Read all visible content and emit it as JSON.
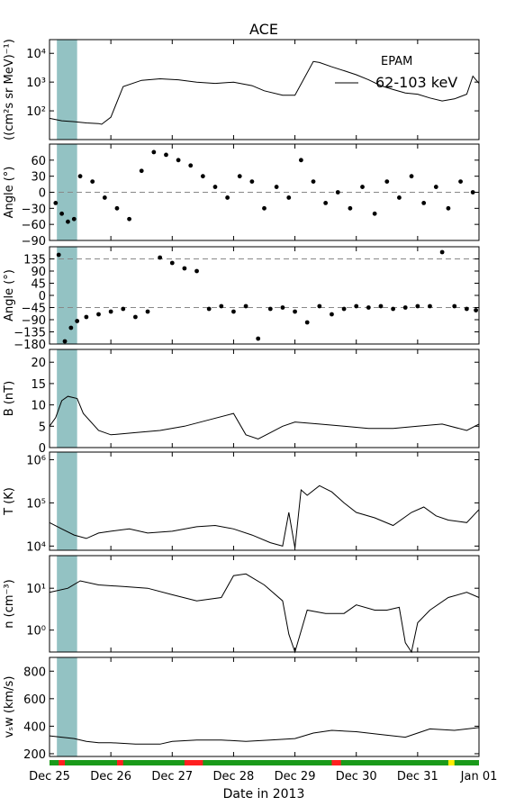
{
  "chart_data": {
    "type": "line",
    "title": "ACE",
    "xlabel": "Date in 2013",
    "x_ticks": [
      "Dec 25",
      "Dec 26",
      "Dec 27",
      "Dec 28",
      "Dec 29",
      "Dec 30",
      "Dec 31",
      "Jan 01"
    ],
    "xlim_days": [
      0,
      7
    ],
    "highlight_days": [
      0.12,
      0.45
    ],
    "highlight_color": "#93c2c3",
    "panels": [
      {
        "id": "epam",
        "type": "line",
        "ylabel": "((cm²s sr MeV)⁻¹)",
        "yscale": "log",
        "ylim": [
          10,
          30000
        ],
        "ytick_labels": [
          "10²",
          "10³",
          "10⁴"
        ],
        "ytick_values": [
          100,
          1000,
          10000
        ],
        "legend_title": "EPAM",
        "legend_entry": "62-103 keV",
        "series": [
          {
            "x": [
              0,
              0.2,
              0.4,
              0.6,
              0.8,
              0.85,
              1.0,
              1.2,
              1.5,
              1.8,
              2.1,
              2.4,
              2.7,
              3.0,
              3.3,
              3.5,
              3.8,
              4.0,
              4.3,
              4.4,
              4.6,
              4.8,
              5.0,
              5.2,
              5.4,
              5.6,
              5.8,
              6.0,
              6.2,
              6.4,
              6.6,
              6.8,
              6.9,
              7.0
            ],
            "y": [
              55,
              45,
              42,
              38,
              36,
              34,
              60,
              700,
              1150,
              1300,
              1200,
              1000,
              900,
              1000,
              750,
              500,
              350,
              350,
              5200,
              4800,
              3400,
              2500,
              1800,
              1200,
              750,
              550,
              420,
              380,
              280,
              220,
              260,
              380,
              1600,
              900
            ]
          }
        ]
      },
      {
        "id": "theta",
        "type": "scatter",
        "ylabel": "Angle (°)",
        "ylim": [
          -90,
          90
        ],
        "ytick_labels": [
          "−90",
          "−60",
          "−30",
          "0",
          "30",
          "60"
        ],
        "ytick_values": [
          -90,
          -60,
          -30,
          0,
          30,
          60
        ],
        "ref_lines": [
          0
        ],
        "series": [
          {
            "x": [
              0.1,
              0.2,
              0.3,
              0.4,
              0.5,
              0.7,
              0.9,
              1.1,
              1.3,
              1.5,
              1.7,
              1.9,
              2.1,
              2.3,
              2.5,
              2.7,
              2.9,
              3.1,
              3.3,
              3.5,
              3.7,
              3.9,
              4.1,
              4.3,
              4.5,
              4.7,
              4.9,
              5.1,
              5.3,
              5.5,
              5.7,
              5.9,
              6.1,
              6.3,
              6.5,
              6.7,
              6.9
            ],
            "y": [
              -20,
              -40,
              -55,
              -50,
              30,
              20,
              -10,
              -30,
              -50,
              40,
              75,
              70,
              60,
              50,
              30,
              10,
              -10,
              30,
              20,
              -30,
              10,
              -10,
              60,
              20,
              -20,
              0,
              -30,
              10,
              -40,
              20,
              -10,
              30,
              -20,
              10,
              -30,
              20,
              0
            ]
          }
        ]
      },
      {
        "id": "phi",
        "type": "scatter",
        "ylabel": "Angle (°)",
        "ylim": [
          -180,
          180
        ],
        "ytick_labels": [
          "−180",
          "−135",
          "−90",
          "−45",
          "0",
          "45",
          "90",
          "135"
        ],
        "ytick_values": [
          -180,
          -135,
          -90,
          -45,
          0,
          45,
          90,
          135
        ],
        "ref_lines": [
          135,
          -45
        ],
        "series": [
          {
            "x": [
              0.15,
              0.25,
              0.35,
              0.45,
              0.6,
              0.8,
              1.0,
              1.2,
              1.4,
              1.6,
              1.8,
              2.0,
              2.2,
              2.4,
              2.6,
              2.8,
              3.0,
              3.2,
              3.4,
              3.6,
              3.8,
              4.0,
              4.2,
              4.4,
              4.6,
              4.8,
              5.0,
              5.2,
              5.4,
              5.6,
              5.8,
              6.0,
              6.2,
              6.4,
              6.6,
              6.8,
              6.95
            ],
            "y": [
              150,
              -170,
              -120,
              -95,
              -80,
              -70,
              -60,
              -50,
              -80,
              -60,
              140,
              120,
              100,
              90,
              -50,
              -40,
              -60,
              -40,
              -160,
              -50,
              -45,
              -60,
              -100,
              -40,
              -70,
              -50,
              -40,
              -45,
              -40,
              -50,
              -45,
              -40,
              -40,
              160,
              -40,
              -50,
              -55
            ]
          }
        ]
      },
      {
        "id": "b",
        "type": "line",
        "ylabel": "B (nT)",
        "ylim": [
          0,
          23
        ],
        "ytick_labels": [
          "0",
          "5",
          "10",
          "15",
          "20"
        ],
        "ytick_values": [
          0,
          5,
          10,
          15,
          20
        ],
        "series": [
          {
            "x": [
              0,
              0.1,
              0.2,
              0.3,
              0.45,
              0.55,
              0.8,
              1.0,
              1.4,
              1.8,
              2.2,
              2.6,
              3.0,
              3.2,
              3.4,
              3.6,
              3.8,
              4.0,
              4.4,
              4.8,
              5.2,
              5.6,
              6.0,
              6.4,
              6.8,
              7.0
            ],
            "y": [
              5,
              7,
              11,
              12,
              11.5,
              8,
              4,
              3,
              3.5,
              4,
              5,
              6.5,
              8,
              3,
              2,
              3.5,
              5,
              6,
              5.5,
              5,
              4.5,
              4.5,
              5,
              5.5,
              4,
              5.5
            ]
          }
        ]
      },
      {
        "id": "t",
        "type": "line",
        "ylabel": "T (K)",
        "yscale": "log",
        "ylim": [
          8000,
          1500000
        ],
        "ytick_labels": [
          "10⁴",
          "10⁵",
          "10⁶"
        ],
        "ytick_values": [
          10000,
          100000,
          1000000
        ],
        "series": [
          {
            "x": [
              0,
              0.2,
              0.4,
              0.6,
              0.8,
              1.0,
              1.3,
              1.6,
              2.0,
              2.4,
              2.7,
              3.0,
              3.3,
              3.6,
              3.8,
              3.9,
              4.0,
              4.1,
              4.2,
              4.4,
              4.6,
              4.8,
              5.0,
              5.3,
              5.6,
              5.9,
              6.1,
              6.3,
              6.5,
              6.8,
              7.0
            ],
            "y": [
              35000,
              25000,
              18000,
              15000,
              20000,
              22000,
              25000,
              20000,
              22000,
              28000,
              30000,
              25000,
              18000,
              12000,
              10000,
              60000,
              9000,
              200000,
              150000,
              250000,
              180000,
              100000,
              60000,
              45000,
              30000,
              60000,
              80000,
              50000,
              40000,
              35000,
              70000
            ]
          }
        ]
      },
      {
        "id": "n",
        "type": "line",
        "ylabel": "n (cm⁻³)",
        "yscale": "log",
        "ylim": [
          0.3,
          60
        ],
        "ytick_labels": [
          "10⁰",
          "10¹"
        ],
        "ytick_values": [
          1,
          10
        ],
        "series": [
          {
            "x": [
              0,
              0.3,
              0.5,
              0.8,
              1.2,
              1.6,
              2.0,
              2.4,
              2.8,
              3.0,
              3.2,
              3.5,
              3.8,
              3.9,
              4.0,
              4.2,
              4.5,
              4.8,
              5.0,
              5.3,
              5.5,
              5.7,
              5.8,
              5.9,
              6.0,
              6.2,
              6.5,
              6.8,
              7.0
            ],
            "y": [
              8,
              10,
              15,
              12,
              11,
              10,
              7,
              5,
              6,
              20,
              22,
              12,
              5,
              0.8,
              0.3,
              3,
              2.5,
              2.5,
              4,
              3,
              3,
              3.5,
              0.5,
              0.3,
              1.5,
              3,
              6,
              8,
              6
            ]
          }
        ]
      },
      {
        "id": "v",
        "type": "line",
        "ylabel": "vₛw (km/s)",
        "ylim": [
          180,
          900
        ],
        "ytick_labels": [
          "200",
          "400",
          "600",
          "800"
        ],
        "ytick_values": [
          200,
          400,
          600,
          800
        ],
        "series": [
          {
            "x": [
              0,
              0.2,
              0.4,
              0.6,
              0.8,
              1.0,
              1.4,
              1.8,
              2.0,
              2.4,
              2.8,
              3.2,
              3.6,
              4.0,
              4.3,
              4.6,
              5.0,
              5.4,
              5.8,
              6.0,
              6.2,
              6.6,
              7.0
            ],
            "y": [
              330,
              320,
              310,
              290,
              280,
              280,
              270,
              270,
              290,
              300,
              300,
              290,
              300,
              310,
              350,
              370,
              360,
              340,
              320,
              350,
              380,
              370,
              390
            ]
          }
        ]
      }
    ],
    "status_bar": {
      "segments_days": [
        0.15,
        0.25,
        1.1,
        1.2,
        2.2,
        2.5,
        4.6,
        4.75,
        6.5,
        6.6
      ],
      "segment_colors": [
        "#ff2020",
        "#ff2020",
        "#ff2020",
        "#ff2020",
        "#ffee00"
      ],
      "base_color": "#1a9a1a"
    }
  }
}
